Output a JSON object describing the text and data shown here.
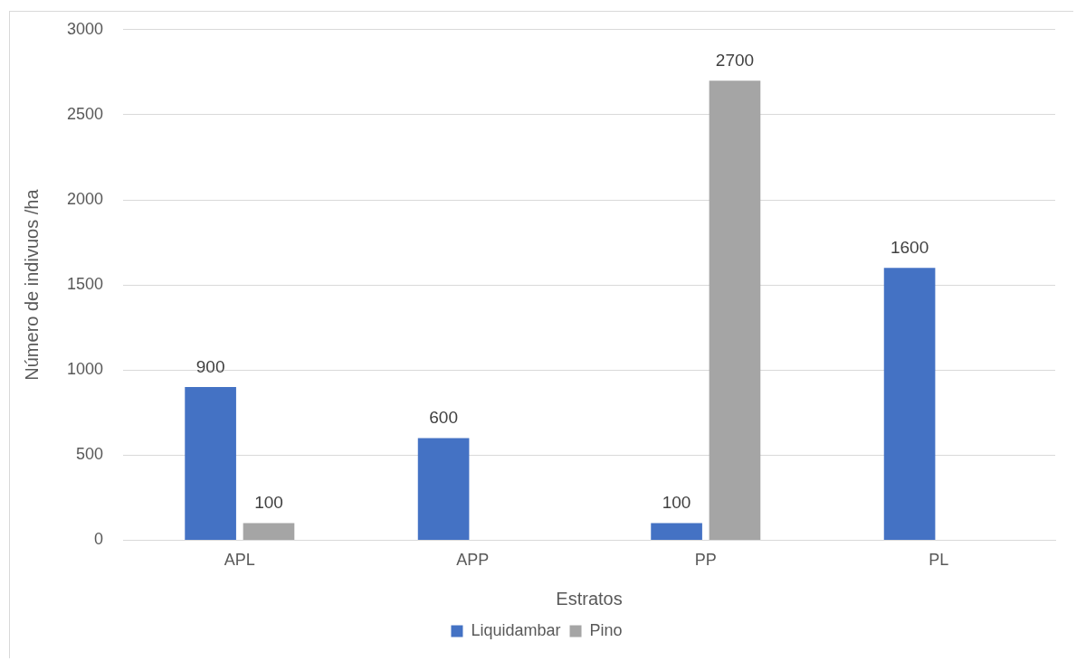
{
  "chart_data": {
    "type": "bar",
    "xlabel": "Estratos",
    "ylabel": "Número de indivuos /ha",
    "categories": [
      "APL",
      "APP",
      "PP",
      "PL"
    ],
    "series": [
      {
        "name": "Liquidambar",
        "color": "#4472c4",
        "values": [
          900,
          600,
          100,
          1600
        ]
      },
      {
        "name": "Pino",
        "color": "#a5a5a5",
        "values": [
          100,
          null,
          2700,
          null
        ]
      }
    ],
    "ylim": [
      0,
      3000
    ],
    "yticks": [
      0,
      500,
      1000,
      1500,
      2000,
      2500,
      3000
    ],
    "grid": "y",
    "legend": "bottom",
    "data_labels": true
  }
}
